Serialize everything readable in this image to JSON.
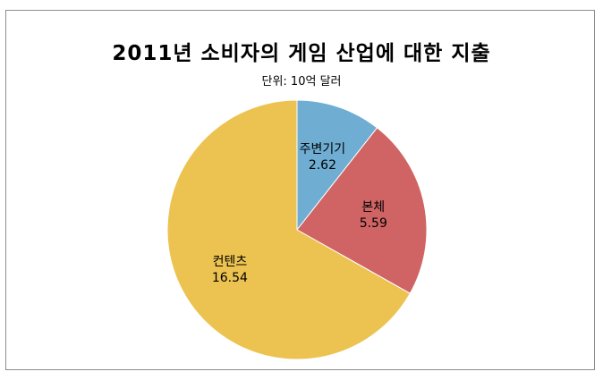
{
  "chart_data": {
    "type": "pie",
    "title": "2011년 소비자의 게임 산업에 대한 지출",
    "subtitle": "단위: 10억 달러",
    "legend": "none",
    "slices": [
      {
        "label": "주변기기",
        "value": 2.62,
        "display": "2.62",
        "color": "#6fadd2"
      },
      {
        "label": "본체",
        "value": 5.59,
        "display": "5.59",
        "color": "#d06464"
      },
      {
        "label": "컨텐츠",
        "value": 16.54,
        "display": "16.54",
        "color": "#ecc350"
      }
    ]
  }
}
